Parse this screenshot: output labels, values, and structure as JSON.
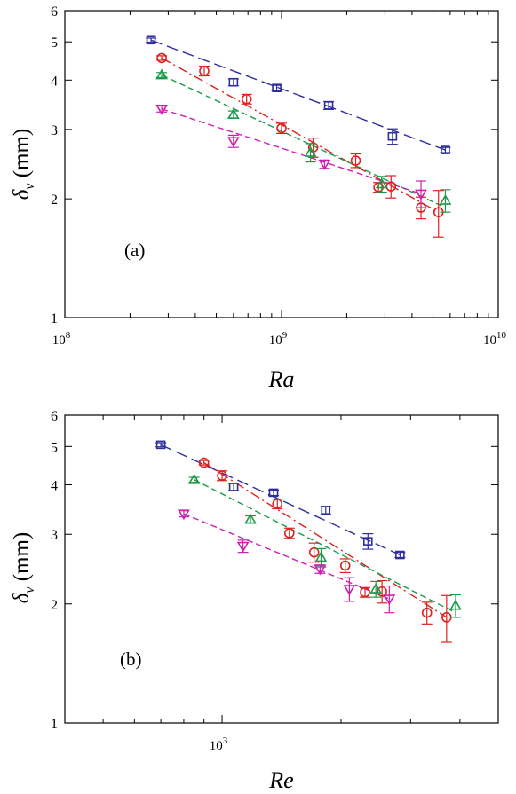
{
  "chart_data": [
    {
      "type": "scatter",
      "panel": "(a)",
      "xlabel": "Ra",
      "ylabel": "δv (mm)",
      "xscale": "log",
      "yscale": "log",
      "xlim": [
        100000000,
        10000000000
      ],
      "ylim": [
        1,
        6
      ],
      "xtick_labels": [
        {
          "v": 100000000,
          "base": "10",
          "exp": "8"
        },
        {
          "v": 1000000000,
          "base": "10",
          "exp": "9"
        },
        {
          "v": 10000000000,
          "base": "10",
          "exp": "10"
        }
      ],
      "ytick_labels": [
        {
          "v": 1,
          "t": "1"
        },
        {
          "v": 2,
          "t": "2"
        },
        {
          "v": 3,
          "t": "3"
        },
        {
          "v": 4,
          "t": "4"
        },
        {
          "v": 5,
          "t": "5"
        },
        {
          "v": 6,
          "t": "6"
        }
      ],
      "series": [
        {
          "marker": "square",
          "color": "#2e2e9e",
          "dash": "13,6",
          "points": [
            [
              250000000,
              5.05,
              0.06
            ],
            [
              600000000,
              3.95,
              0.08
            ],
            [
              950000000,
              3.82,
              0.06
            ],
            [
              1650000000,
              3.45,
              0.08
            ],
            [
              3250000000,
              2.88,
              0.13
            ],
            [
              5700000000,
              2.66,
              0.04
            ]
          ],
          "fit": [
            [
              250000000,
              5.05
            ],
            [
              5700000000,
              2.66
            ]
          ]
        },
        {
          "marker": "circle",
          "color": "#e0201e",
          "dash": "11,4,2,4",
          "points": [
            [
              280000000,
              4.55,
              0.06
            ],
            [
              440000000,
              4.22,
              0.12
            ],
            [
              690000000,
              3.58,
              0.1
            ],
            [
              1000000000,
              3.02,
              0.09
            ],
            [
              1400000000,
              2.7,
              0.15
            ],
            [
              2200000000,
              2.5,
              0.1
            ],
            [
              2800000000,
              2.14,
              0.06
            ],
            [
              3200000000,
              2.15,
              0.14
            ],
            [
              4400000000,
              1.9,
              0.12
            ],
            [
              5300000000,
              1.85,
              0.25
            ]
          ],
          "fit": [
            [
              280000000,
              4.55
            ],
            [
              5300000000,
              1.85
            ]
          ]
        },
        {
          "marker": "triangle-up",
          "color": "#1a9a4a",
          "dash": "7,4",
          "points": [
            [
              280000000,
              4.12,
              0.06
            ],
            [
              600000000,
              3.27,
              0.07
            ],
            [
              1360000000,
              2.62,
              0.14
            ],
            [
              2900000000,
              2.18,
              0.1
            ],
            [
              5700000000,
              1.98,
              0.13
            ]
          ],
          "fit": [
            [
              280000000,
              4.12
            ],
            [
              5700000000,
              1.9
            ]
          ]
        },
        {
          "marker": "triangle-down",
          "color": "#cc20b0",
          "dash": "7,4",
          "points": [
            [
              280000000,
              3.38,
              0.06
            ],
            [
              600000000,
              2.8,
              0.1
            ],
            [
              1580000000,
              2.45,
              0.06
            ],
            [
              4400000000,
              2.06,
              0.16
            ]
          ],
          "fit": [
            [
              280000000,
              3.38
            ],
            [
              4400000000,
              2.06
            ]
          ]
        }
      ]
    },
    {
      "type": "scatter",
      "panel": "(b)",
      "xlabel": "Re",
      "ylabel": "δv (mm)",
      "xscale": "log",
      "yscale": "log",
      "xlim": [
        400,
        5000
      ],
      "ylim": [
        1,
        6
      ],
      "xtick_labels": [
        {
          "v": 1000,
          "base": "10",
          "exp": "3"
        }
      ],
      "ytick_labels": [
        {
          "v": 1,
          "t": "1"
        },
        {
          "v": 2,
          "t": "2"
        },
        {
          "v": 3,
          "t": "3"
        },
        {
          "v": 4,
          "t": "4"
        },
        {
          "v": 5,
          "t": "5"
        },
        {
          "v": 6,
          "t": "6"
        }
      ],
      "series": [
        {
          "marker": "square",
          "color": "#2e2e9e",
          "dash": "13,6",
          "points": [
            [
              700,
              5.05,
              0.06
            ],
            [
              1070,
              3.95,
              0.08
            ],
            [
              1350,
              3.82,
              0.06
            ],
            [
              1830,
              3.45,
              0.08
            ],
            [
              2340,
              2.88,
              0.13
            ],
            [
              2820,
              2.66,
              0.04
            ]
          ],
          "fit": [
            [
              700,
              5.05
            ],
            [
              2820,
              2.66
            ]
          ]
        },
        {
          "marker": "circle",
          "color": "#e0201e",
          "dash": "11,4,2,4",
          "points": [
            [
              900,
              4.55,
              0.06
            ],
            [
              1000,
              4.22,
              0.12
            ],
            [
              1380,
              3.58,
              0.1
            ],
            [
              1480,
              3.02,
              0.09
            ],
            [
              1710,
              2.7,
              0.15
            ],
            [
              2050,
              2.5,
              0.1
            ],
            [
              2300,
              2.14,
              0.06
            ],
            [
              2540,
              2.15,
              0.14
            ],
            [
              3300,
              1.9,
              0.12
            ],
            [
              3700,
              1.85,
              0.25
            ]
          ],
          "fit": [
            [
              900,
              4.55
            ],
            [
              3700,
              1.85
            ]
          ]
        },
        {
          "marker": "triangle-up",
          "color": "#1a9a4a",
          "dash": "7,4",
          "points": [
            [
              850,
              4.12,
              0.06
            ],
            [
              1180,
              3.27,
              0.07
            ],
            [
              1780,
              2.62,
              0.14
            ],
            [
              2450,
              2.18,
              0.1
            ],
            [
              3900,
              1.98,
              0.13
            ]
          ],
          "fit": [
            [
              850,
              4.12
            ],
            [
              3900,
              1.9
            ]
          ]
        },
        {
          "marker": "triangle-down",
          "color": "#cc20b0",
          "dash": "7,4",
          "points": [
            [
              800,
              3.38,
              0.06
            ],
            [
              1130,
              2.8,
              0.1
            ],
            [
              1770,
              2.45,
              0.06
            ],
            [
              2100,
              2.18,
              0.15
            ],
            [
              2650,
              2.06,
              0.16
            ]
          ],
          "fit": [
            [
              800,
              3.38
            ],
            [
              2650,
              2.06
            ]
          ]
        }
      ]
    }
  ]
}
